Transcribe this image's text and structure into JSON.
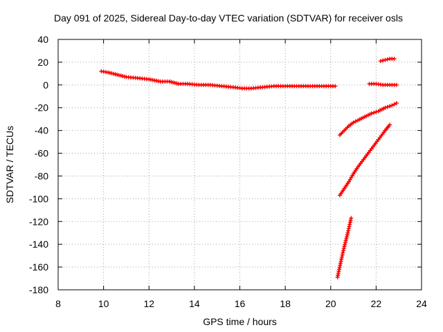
{
  "chart_data": {
    "type": "scatter",
    "title": "Day 091 of 2025, Sidereal Day-to-day VTEC variation (SDTVAR) for receiver osls",
    "xlabel": "GPS time / hours",
    "ylabel": "SDTVAR / TECUs",
    "xlim": [
      8,
      24
    ],
    "ylim": [
      -180,
      40
    ],
    "xticks": [
      "8",
      "10",
      "12",
      "14",
      "16",
      "18",
      "20",
      "22",
      "24"
    ],
    "yticks": [
      "40",
      "20",
      "0",
      "-20",
      "-40",
      "-60",
      "-80",
      "-100",
      "-120",
      "-140",
      "-160",
      "-180"
    ],
    "grid": true,
    "marker": "plus",
    "color": "#ff0000",
    "series": [
      {
        "x": [
          9.9,
          10.2,
          10.6,
          11.0,
          11.5,
          12.0,
          12.5,
          12.9,
          13.3,
          13.7,
          14.2,
          14.7,
          15.2,
          15.7,
          16.1,
          16.5,
          17.0,
          17.5,
          18.0,
          18.5,
          19.0,
          19.5,
          20.0,
          20.2
        ],
        "y": [
          12,
          11,
          9,
          7,
          6,
          5,
          3,
          3,
          1,
          1,
          0,
          0,
          -1,
          -2,
          -3,
          -3,
          -2,
          -1,
          -1,
          -1,
          -1,
          -1,
          -1,
          -1
        ]
      },
      {
        "x": [
          20.4,
          20.6,
          20.8,
          21.0,
          21.2,
          21.5,
          21.8,
          22.1,
          22.4,
          22.7,
          22.9
        ],
        "y": [
          -44,
          -40,
          -36,
          -33,
          -31,
          -28,
          -25,
          -23,
          -20,
          -18,
          -16
        ]
      },
      {
        "x": [
          20.4,
          20.6,
          20.8,
          21.0,
          21.2,
          21.5,
          21.8,
          22.1,
          22.4,
          22.6
        ],
        "y": [
          -97,
          -91,
          -85,
          -78,
          -72,
          -64,
          -56,
          -48,
          -40,
          -35
        ]
      },
      {
        "x": [
          20.3,
          20.45,
          20.6,
          20.75,
          20.9
        ],
        "y": [
          -169,
          -155,
          -142,
          -130,
          -117
        ]
      },
      {
        "x": [
          21.7,
          22.0,
          22.3,
          22.6,
          22.9
        ],
        "y": [
          1,
          1,
          0,
          0,
          0
        ]
      },
      {
        "x": [
          22.2,
          22.4,
          22.6,
          22.8
        ],
        "y": [
          21,
          22,
          23,
          23
        ]
      }
    ]
  }
}
